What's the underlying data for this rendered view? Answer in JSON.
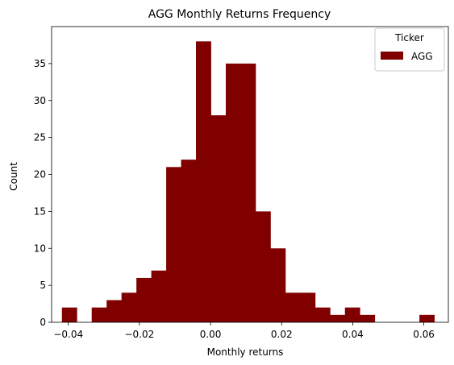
{
  "chart_data": {
    "type": "bar",
    "title": "AGG Monthly Returns Frequency",
    "xlabel": "Monthly returns",
    "ylabel": "Count",
    "xlim": [
      -0.0447,
      0.0669
    ],
    "ylim": [
      0,
      40
    ],
    "x_ticks": [
      {
        "value": -0.04,
        "label": "−0.04"
      },
      {
        "value": -0.02,
        "label": "−0.02"
      },
      {
        "value": 0.0,
        "label": "0.00"
      },
      {
        "value": 0.02,
        "label": "0.02"
      },
      {
        "value": 0.04,
        "label": "0.04"
      },
      {
        "value": 0.06,
        "label": "0.06"
      }
    ],
    "y_ticks": [
      {
        "value": 0,
        "label": "0"
      },
      {
        "value": 5,
        "label": "5"
      },
      {
        "value": 10,
        "label": "10"
      },
      {
        "value": 15,
        "label": "15"
      },
      {
        "value": 20,
        "label": "20"
      },
      {
        "value": 25,
        "label": "25"
      },
      {
        "value": 30,
        "label": "30"
      },
      {
        "value": 35,
        "label": "35"
      }
    ],
    "bin_start": -0.0418,
    "bin_width": 0.00419,
    "series": [
      {
        "name": "AGG",
        "color": "#800000",
        "values": [
          2,
          0,
          2,
          3,
          4,
          6,
          7,
          21,
          22,
          38,
          28,
          35,
          35,
          15,
          10,
          4,
          4,
          2,
          1,
          2,
          1,
          0,
          0,
          0,
          1
        ]
      }
    ],
    "legend": {
      "title": "Ticker",
      "position": "top-right"
    },
    "grid": false
  }
}
